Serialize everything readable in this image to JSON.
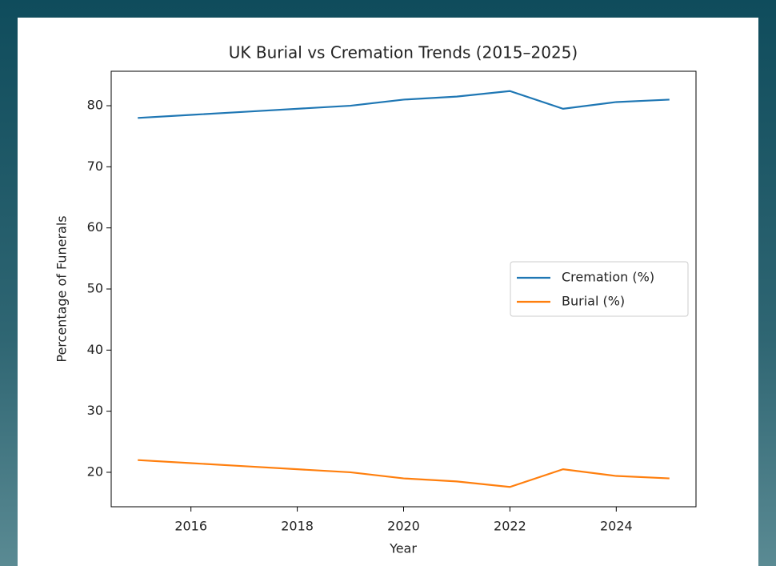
{
  "chart_data": {
    "type": "line",
    "title": "UK Burial vs Cremation Trends (2015–2025)",
    "x_label": "Year",
    "y_label": "Percentage of Funerals",
    "x": [
      2015,
      2016,
      2017,
      2018,
      2019,
      2020,
      2021,
      2022,
      2023,
      2024,
      2025
    ],
    "series": [
      {
        "name": "Cremation (%)",
        "color": "#1f77b4",
        "values": [
          78,
          78.5,
          79,
          79.5,
          80,
          81,
          81.5,
          82.4,
          79.5,
          80.6,
          81
        ]
      },
      {
        "name": "Burial (%)",
        "color": "#ff7f0e",
        "values": [
          22,
          21.5,
          21,
          20.5,
          20,
          19,
          18.5,
          17.6,
          20.5,
          19.4,
          19
        ]
      }
    ],
    "xlim": [
      2014.5,
      2025.5
    ],
    "xticks": [
      2016,
      2018,
      2020,
      2022,
      2024
    ],
    "ylim": [
      14.36,
      85.64
    ],
    "yticks": [
      20,
      30,
      40,
      50,
      60,
      70,
      80
    ],
    "legend": "center right",
    "grid": false
  }
}
